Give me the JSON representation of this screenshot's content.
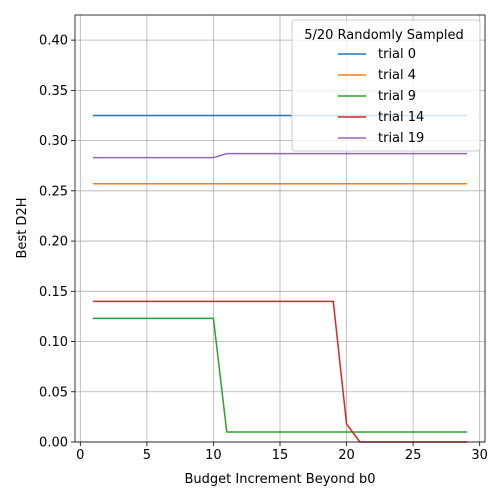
{
  "chart_data": {
    "type": "line",
    "title": "",
    "xlabel": "Budget Increment Beyond b0",
    "ylabel": "Best D2H",
    "xlim": [
      -0.4,
      30.4
    ],
    "ylim": [
      0.0,
      0.425
    ],
    "xticks": [
      0,
      5,
      10,
      15,
      20,
      25,
      30
    ],
    "yticks": [
      0.0,
      0.05,
      0.1,
      0.15,
      0.2,
      0.25,
      0.3,
      0.35,
      0.4
    ],
    "ytick_labels": [
      "0.00",
      "0.05",
      "0.10",
      "0.15",
      "0.20",
      "0.25",
      "0.30",
      "0.35",
      "0.40"
    ],
    "grid": true,
    "legend_title": "5/20 Randomly Sampled",
    "legend_position": "top-right",
    "x": [
      1,
      2,
      3,
      4,
      5,
      6,
      7,
      8,
      9,
      10,
      11,
      12,
      13,
      14,
      15,
      16,
      17,
      18,
      19,
      20,
      21,
      22,
      23,
      24,
      25,
      26,
      27,
      28,
      29
    ],
    "series": [
      {
        "name": "trial 0",
        "color": "#1f77b4",
        "values": [
          0.325,
          0.325,
          0.325,
          0.325,
          0.325,
          0.325,
          0.325,
          0.325,
          0.325,
          0.325,
          0.325,
          0.325,
          0.325,
          0.325,
          0.325,
          0.325,
          0.325,
          0.325,
          0.325,
          0.325,
          0.325,
          0.325,
          0.325,
          0.325,
          0.325,
          0.325,
          0.325,
          0.325,
          0.325
        ]
      },
      {
        "name": "trial 4",
        "color": "#ff7f0e",
        "values": [
          0.257,
          0.257,
          0.257,
          0.257,
          0.257,
          0.257,
          0.257,
          0.257,
          0.257,
          0.257,
          0.257,
          0.257,
          0.257,
          0.257,
          0.257,
          0.257,
          0.257,
          0.257,
          0.257,
          0.257,
          0.257,
          0.257,
          0.257,
          0.257,
          0.257,
          0.257,
          0.257,
          0.257,
          0.257
        ]
      },
      {
        "name": "trial 9",
        "color": "#2ca02c",
        "values": [
          0.123,
          0.123,
          0.123,
          0.123,
          0.123,
          0.123,
          0.123,
          0.123,
          0.123,
          0.123,
          0.01,
          0.01,
          0.01,
          0.01,
          0.01,
          0.01,
          0.01,
          0.01,
          0.01,
          0.01,
          0.01,
          0.01,
          0.01,
          0.01,
          0.01,
          0.01,
          0.01,
          0.01,
          0.01
        ]
      },
      {
        "name": "trial 14",
        "color": "#d62728",
        "values": [
          0.14,
          0.14,
          0.14,
          0.14,
          0.14,
          0.14,
          0.14,
          0.14,
          0.14,
          0.14,
          0.14,
          0.14,
          0.14,
          0.14,
          0.14,
          0.14,
          0.14,
          0.14,
          0.14,
          0.018,
          0.0,
          0.0,
          0.0,
          0.0,
          0.0,
          0.0,
          0.0,
          0.0,
          0.0
        ]
      },
      {
        "name": "trial 19",
        "color": "#9467bd",
        "values": [
          0.283,
          0.283,
          0.283,
          0.283,
          0.283,
          0.283,
          0.283,
          0.283,
          0.283,
          0.283,
          0.287,
          0.287,
          0.287,
          0.287,
          0.287,
          0.287,
          0.287,
          0.287,
          0.287,
          0.287,
          0.287,
          0.287,
          0.287,
          0.287,
          0.287,
          0.287,
          0.287,
          0.287,
          0.287
        ]
      }
    ]
  }
}
